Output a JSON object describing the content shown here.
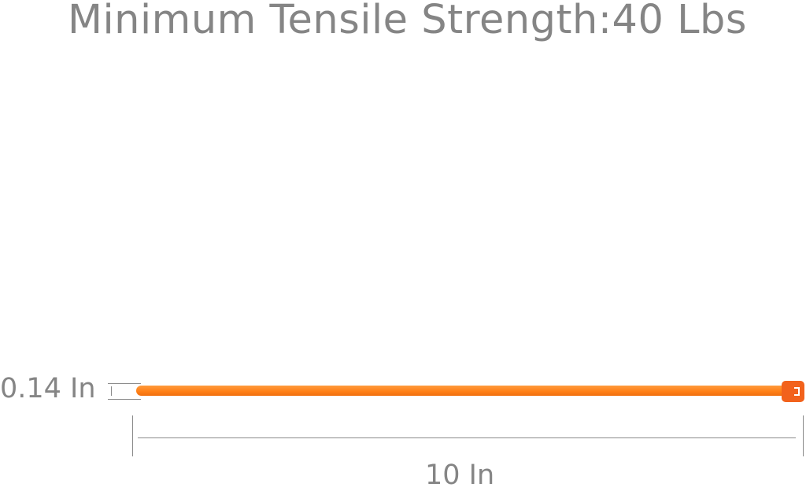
{
  "title": "Minimum Tensile Strength:40 Lbs",
  "dimensions": {
    "width_label": "0.14 In",
    "length_label": "10 In"
  },
  "colors": {
    "tie": "#ff8a20",
    "head": "#f2621c",
    "text": "#858585"
  }
}
